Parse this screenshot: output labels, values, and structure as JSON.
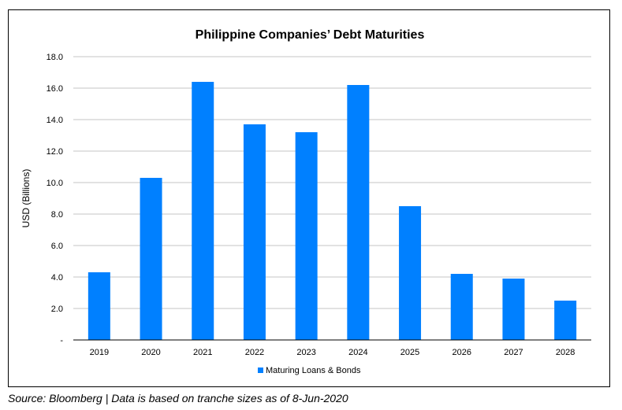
{
  "chart_data": {
    "type": "bar",
    "title": "Philippine Companies’ Debt Maturities",
    "ylabel": "USD (Billions)",
    "xlabel": "",
    "categories": [
      "2019",
      "2020",
      "2021",
      "2022",
      "2023",
      "2024",
      "2025",
      "2026",
      "2027",
      "2028"
    ],
    "series": [
      {
        "name": "Maturing Loans & Bonds",
        "color": "#0080FF",
        "values": [
          4.3,
          10.3,
          16.4,
          13.7,
          13.2,
          16.2,
          8.5,
          4.2,
          3.9,
          2.5
        ]
      }
    ],
    "ylim": [
      0,
      18
    ],
    "yticks": [
      0,
      2,
      4,
      6,
      8,
      10,
      12,
      14,
      16,
      18
    ],
    "ytick_labels": [
      "-",
      "2.0",
      "4.0",
      "6.0",
      "8.0",
      "10.0",
      "12.0",
      "14.0",
      "16.0",
      "18.0"
    ],
    "grid": true,
    "gridline_color": "#D9D9D9",
    "legend_position": "bottom"
  },
  "source_note": "Source: Bloomberg | Data is based on tranche sizes as of 8-Jun-2020"
}
